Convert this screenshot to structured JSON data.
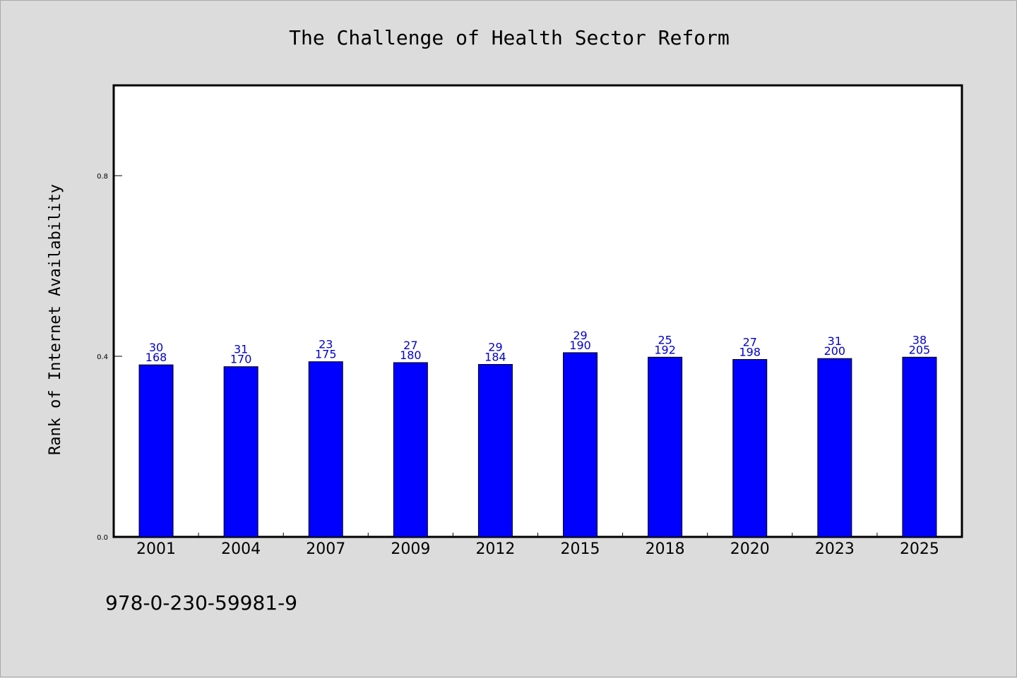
{
  "chart_data": {
    "type": "bar",
    "title": "The Challenge of Health Sector Reform",
    "ylabel": "Rank of Internet Availability",
    "xlabel": "",
    "categories": [
      "2001",
      "2004",
      "2007",
      "2009",
      "2012",
      "2015",
      "2018",
      "2020",
      "2023",
      "2025"
    ],
    "values": [
      0.381,
      0.377,
      0.388,
      0.386,
      0.382,
      0.408,
      0.398,
      0.393,
      0.395,
      0.398
    ],
    "label_top": [
      "30",
      "31",
      "23",
      "27",
      "29",
      "29",
      "25",
      "27",
      "31",
      "38"
    ],
    "label_bottom": [
      "168",
      "170",
      "175",
      "180",
      "184",
      "190",
      "192",
      "198",
      "200",
      "205"
    ],
    "yticks": [
      "0.0",
      "0.4",
      "0.8"
    ],
    "ylim": [
      0,
      1.0
    ],
    "grid": false,
    "bar_color": "#0000ff",
    "label_color": "#0000cc"
  },
  "footer": {
    "isbn": "978-0-230-59981-9"
  },
  "colors": {
    "background": "#dcdcdc",
    "plot_background": "#ffffff"
  }
}
